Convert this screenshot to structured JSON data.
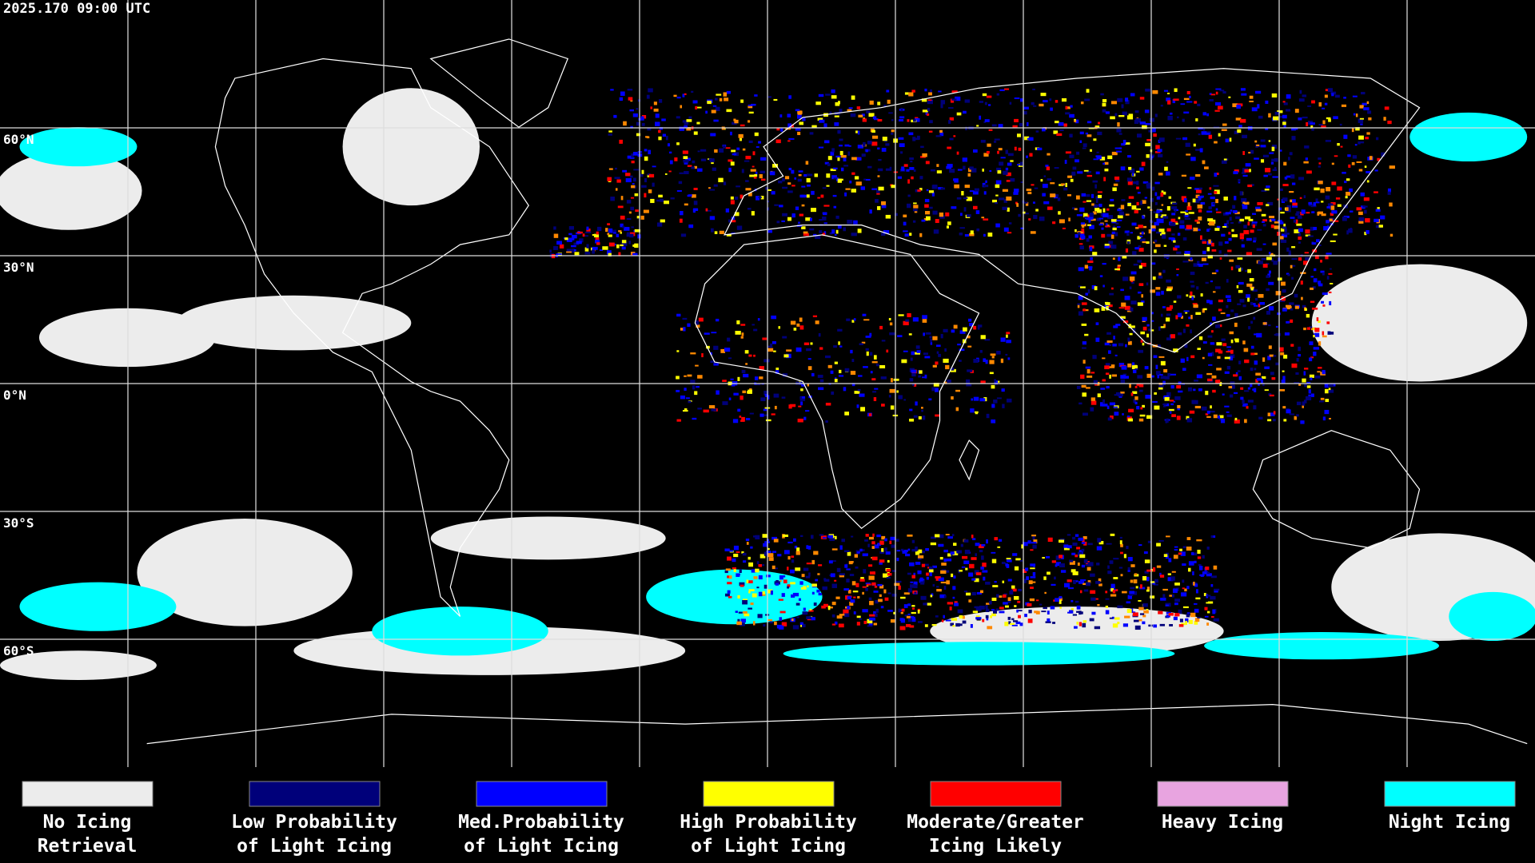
{
  "title": "2025.170 09:00 UTC",
  "latitude_labels": [
    "60°N",
    "30°N",
    "0°N",
    "30°S",
    "60°S"
  ],
  "legend": [
    {
      "color": "#ececec",
      "label": [
        "No Icing",
        "Retrieval"
      ]
    },
    {
      "color": "#00007a",
      "label": [
        "Low Probability",
        "of Light Icing"
      ]
    },
    {
      "color": "#0000ff",
      "label": [
        "Med.Probability",
        "of Light Icing"
      ]
    },
    {
      "color": "#ffff00",
      "label": [
        "High Probability",
        "of Light Icing"
      ]
    },
    {
      "color": "#ff0000",
      "label": [
        "Moderate/Greater",
        "Icing Likely"
      ]
    },
    {
      "color": "#e8a4e0",
      "label": [
        "Heavy Icing"
      ]
    },
    {
      "color": "#00ffff",
      "label": [
        "Night Icing"
      ]
    }
  ]
}
